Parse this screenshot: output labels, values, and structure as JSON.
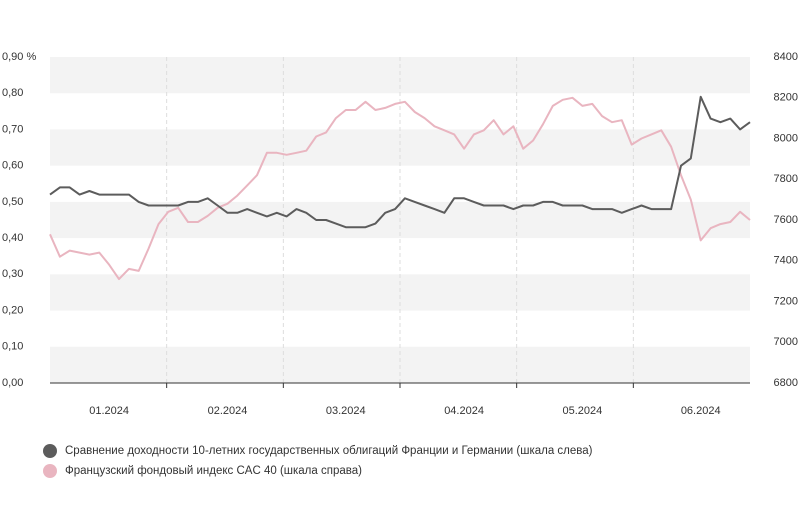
{
  "chart_data": {
    "type": "line",
    "categories": [
      null,
      null,
      null,
      null,
      null,
      null,
      "01.2024",
      null,
      null,
      null,
      null,
      null,
      null,
      null,
      null,
      null,
      null,
      null,
      "02.2024",
      null,
      null,
      null,
      null,
      null,
      null,
      null,
      null,
      null,
      null,
      null,
      "03.2024",
      null,
      null,
      null,
      null,
      null,
      null,
      null,
      null,
      null,
      null,
      null,
      "04.2024",
      null,
      null,
      null,
      null,
      null,
      null,
      null,
      null,
      null,
      null,
      null,
      "05.2024",
      null,
      null,
      null,
      null,
      null,
      null,
      null,
      null,
      null,
      null,
      null,
      "06.2024",
      null,
      null,
      null,
      null,
      null
    ],
    "ylim": [
      0,
      0.9
    ],
    "yticks": [
      {
        "value": 0,
        "label": "0,00"
      },
      {
        "value": 0.1,
        "label": "0,10"
      },
      {
        "value": 0.2,
        "label": "0,20"
      },
      {
        "value": 0.3,
        "label": "0,30"
      },
      {
        "value": 0.4,
        "label": "0,40"
      },
      {
        "value": 0.5,
        "label": "0,50"
      },
      {
        "value": 0.6,
        "label": "0,60"
      },
      {
        "value": 0.7,
        "label": "0,70"
      },
      {
        "value": 0.8,
        "label": "0,80"
      },
      {
        "value": 0.9,
        "label": "0,90 %"
      }
    ],
    "y2lim": [
      6800,
      8400
    ],
    "y2ticks": [
      6800,
      7000,
      7200,
      7400,
      7600,
      7800,
      8000,
      8200,
      8400
    ],
    "bands": true,
    "series": [
      {
        "name": "Сравнение доходности 10-летних государственных облигаций Франции и Германии (шкала слева)",
        "color": "#5c5c5c",
        "values": [
          0.52,
          0.54,
          0.54,
          0.52,
          0.53,
          0.52,
          0.52,
          0.52,
          0.52,
          0.5,
          0.49,
          0.49,
          0.49,
          0.49,
          0.5,
          0.5,
          0.51,
          0.49,
          0.47,
          0.47,
          0.48,
          0.47,
          0.46,
          0.47,
          0.46,
          0.48,
          0.47,
          0.45,
          0.45,
          0.44,
          0.43,
          0.43,
          0.43,
          0.44,
          0.47,
          0.48,
          0.51,
          0.5,
          0.49,
          0.48,
          0.47,
          0.51,
          0.51,
          0.5,
          0.49,
          0.49,
          0.49,
          0.48,
          0.49,
          0.49,
          0.5,
          0.5,
          0.49,
          0.49,
          0.49,
          0.48,
          0.48,
          0.48,
          0.47,
          0.48,
          0.49,
          0.48,
          0.48,
          0.48,
          0.6,
          0.62,
          0.79,
          0.73,
          0.72,
          0.73,
          0.7,
          0.72
        ]
      },
      {
        "name": "Французский фондовый индекс CAC 40 (шкала справа)",
        "color": "#e9b5c0",
        "axis": "y2",
        "values": [
          7530,
          7420,
          7450,
          7440,
          7430,
          7440,
          7380,
          7310,
          7360,
          7350,
          7460,
          7580,
          7640,
          7660,
          7590,
          7590,
          7620,
          7660,
          7680,
          7720,
          7770,
          7820,
          7930,
          7930,
          7920,
          7930,
          7940,
          8010,
          8030,
          8100,
          8140,
          8140,
          8180,
          8140,
          8150,
          8170,
          8180,
          8130,
          8100,
          8060,
          8040,
          8020,
          7950,
          8020,
          8040,
          8090,
          8020,
          8060,
          7950,
          7990,
          8070,
          8160,
          8190,
          8200,
          8160,
          8170,
          8110,
          8080,
          8090,
          7970,
          8000,
          8020,
          8040,
          7960,
          7820,
          7700,
          7500,
          7560,
          7580,
          7590,
          7640,
          7600
        ]
      }
    ]
  }
}
